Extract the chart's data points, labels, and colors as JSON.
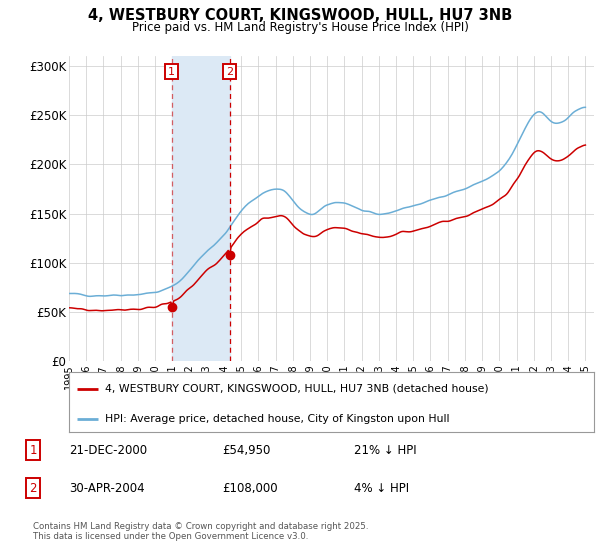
{
  "title_line1": "4, WESTBURY COURT, KINGSWOOD, HULL, HU7 3NB",
  "title_line2": "Price paid vs. HM Land Registry's House Price Index (HPI)",
  "sale1_date": "21-DEC-2000",
  "sale1_price": 54950,
  "sale1_price_str": "£54,950",
  "sale1_hpi_diff": "21% ↓ HPI",
  "sale2_date": "30-APR-2004",
  "sale2_price": 108000,
  "sale2_price_str": "£108,000",
  "sale2_hpi_diff": "4% ↓ HPI",
  "legend_line1": "4, WESTBURY COURT, KINGSWOOD, HULL, HU7 3NB (detached house)",
  "legend_line2": "HPI: Average price, detached house, City of Kingston upon Hull",
  "footnote": "Contains HM Land Registry data © Crown copyright and database right 2025.\nThis data is licensed under the Open Government Licence v3.0.",
  "hpi_color": "#6baed6",
  "price_color": "#cc0000",
  "bg_color": "#ffffff",
  "grid_color": "#cccccc",
  "highlight_color": "#dce9f5",
  "vline_color": "#cc0000",
  "ylim": [
    0,
    310000
  ],
  "yticks": [
    0,
    50000,
    100000,
    150000,
    200000,
    250000,
    300000
  ],
  "ytick_labels": [
    "£0",
    "£50K",
    "£100K",
    "£150K",
    "£200K",
    "£250K",
    "£300K"
  ],
  "sale1_x": 2000.97,
  "sale1_y": 54950,
  "sale2_x": 2004.33,
  "sale2_y": 108000,
  "xmin": 1995.0,
  "xmax": 2025.5
}
